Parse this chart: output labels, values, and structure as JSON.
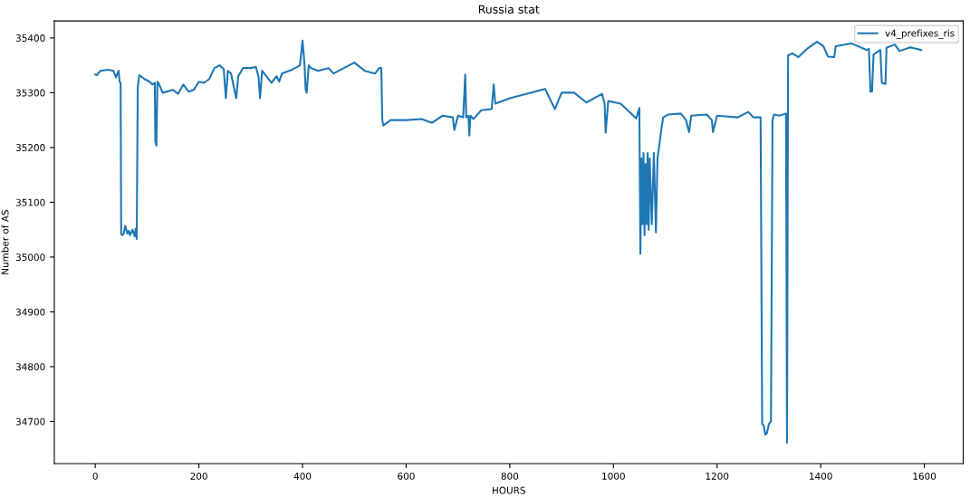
{
  "chart_data": {
    "type": "line",
    "title": "Russia stat",
    "xlabel": "HOURS",
    "ylabel": "Number of AS",
    "x": [
      0,
      3,
      10,
      25,
      35,
      40,
      45,
      47,
      49,
      50,
      52,
      55,
      58,
      62,
      65,
      67,
      72,
      76,
      78,
      80,
      82,
      85,
      95,
      105,
      110,
      115,
      116,
      118,
      120,
      122,
      130,
      150,
      160,
      170,
      180,
      190,
      200,
      210,
      220,
      230,
      240,
      248,
      252,
      256,
      262,
      272,
      276,
      285,
      300,
      310,
      315,
      318,
      322,
      340,
      350,
      355,
      360,
      380,
      395,
      400,
      404,
      406,
      408,
      412,
      416,
      430,
      450,
      460,
      500,
      520,
      540,
      548,
      552,
      554,
      556,
      560,
      570,
      600,
      630,
      650,
      670,
      690,
      693,
      700,
      710,
      714,
      716,
      720,
      722,
      724,
      730,
      745,
      765,
      769,
      772,
      800,
      868,
      887,
      900,
      924,
      948,
      978,
      983,
      985,
      990,
      1014,
      1044,
      1050,
      1052,
      1054,
      1056,
      1058,
      1060,
      1062,
      1064,
      1066,
      1068,
      1070,
      1074,
      1078,
      1082,
      1085,
      1088,
      1092,
      1096,
      1105,
      1130,
      1140,
      1146,
      1150,
      1180,
      1190,
      1192,
      1200,
      1240,
      1260,
      1270,
      1284,
      1287,
      1290,
      1293,
      1296,
      1300,
      1304,
      1307,
      1310,
      1320,
      1333,
      1335,
      1337,
      1345,
      1357,
      1375,
      1393,
      1405,
      1414,
      1426,
      1429,
      1459,
      1489,
      1493,
      1496,
      1499,
      1502,
      1515,
      1518,
      1525,
      1527,
      1543,
      1552,
      1573,
      1594
    ],
    "series": [
      {
        "name": "v4_prefixes_ris",
        "color": "#1f77b4",
        "values": [
          35333,
          35332,
          35340,
          35342,
          35340,
          35328,
          35340,
          35320,
          35318,
          35042,
          35040,
          35043,
          35057,
          35043,
          35048,
          35040,
          35050,
          35038,
          35052,
          35033,
          35310,
          35332,
          35325,
          35320,
          35315,
          35318,
          35210,
          35203,
          35320,
          35318,
          35300,
          35305,
          35298,
          35315,
          35302,
          35305,
          35320,
          35318,
          35325,
          35345,
          35350,
          35343,
          35290,
          35340,
          35335,
          35290,
          35330,
          35345,
          35345,
          35347,
          35330,
          35290,
          35340,
          35318,
          35330,
          35320,
          35335,
          35342,
          35350,
          35395,
          35350,
          35305,
          35300,
          35350,
          35345,
          35340,
          35345,
          35335,
          35355,
          35340,
          35335,
          35345,
          35345,
          35250,
          35240,
          35243,
          35250,
          35250,
          35252,
          35245,
          35258,
          35255,
          35232,
          35258,
          35255,
          35333,
          35255,
          35258,
          35222,
          35258,
          35252,
          35268,
          35270,
          35315,
          35280,
          35290,
          35307,
          35270,
          35300,
          35300,
          35282,
          35298,
          35280,
          35227,
          35285,
          35280,
          35253,
          35272,
          35006,
          35180,
          35060,
          35190,
          35040,
          35170,
          35060,
          35190,
          35050,
          35180,
          35060,
          35190,
          35045,
          35180,
          35200,
          35230,
          35255,
          35260,
          35262,
          35250,
          35228,
          35258,
          35260,
          35250,
          35228,
          35258,
          35255,
          35265,
          35255,
          35255,
          34695,
          34693,
          34676,
          34678,
          34695,
          34700,
          35250,
          35260,
          35258,
          35262,
          34661,
          35368,
          35372,
          35365,
          35381,
          35393,
          35385,
          35366,
          35365,
          35385,
          35390,
          35378,
          35380,
          35302,
          35302,
          35370,
          35378,
          35318,
          35316,
          35382,
          35388,
          35376,
          35383,
          35378
        ]
      }
    ],
    "xlim": [
      -79,
      1675
    ],
    "ylim": [
      34623,
      35431
    ],
    "xticks": [
      0,
      200,
      400,
      600,
      800,
      1000,
      1200,
      1400,
      1600
    ],
    "yticks": [
      34700,
      34800,
      34900,
      35000,
      35100,
      35200,
      35300,
      35400
    ],
    "legend": "top right",
    "grid": false
  }
}
